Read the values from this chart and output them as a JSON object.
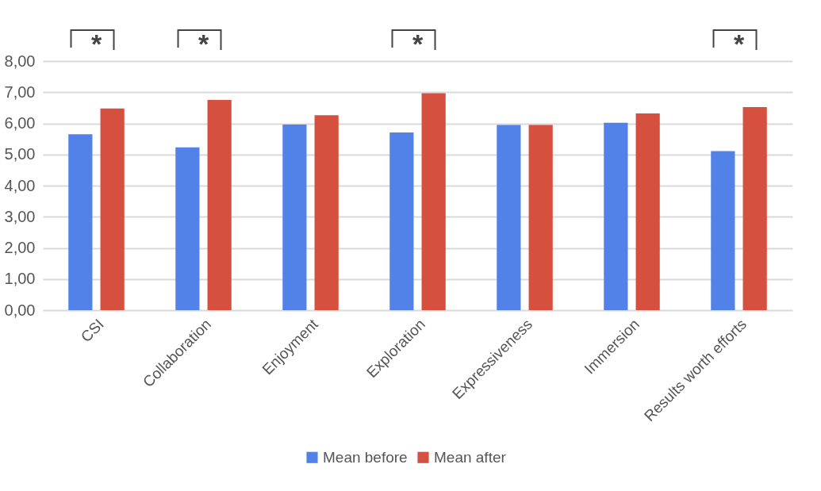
{
  "chart_data": {
    "type": "bar",
    "categories": [
      "CSI",
      "Collaboration",
      "Enjoyment",
      "Exploration",
      "Expressiveness",
      "Immersion",
      "Results worth efforts"
    ],
    "series": [
      {
        "name": "Mean before",
        "color": "#5282e8",
        "values": [
          5.65,
          5.23,
          5.96,
          5.71,
          5.95,
          6.02,
          5.11
        ]
      },
      {
        "name": "Mean after",
        "color": "#d65040",
        "values": [
          6.48,
          6.75,
          6.26,
          6.97,
          5.95,
          6.32,
          6.52
        ]
      }
    ],
    "ylim": [
      0,
      8
    ],
    "yticks": [
      {
        "value": 0,
        "label": "0,00"
      },
      {
        "value": 1,
        "label": "1,00"
      },
      {
        "value": 2,
        "label": "2,00"
      },
      {
        "value": 3,
        "label": "3,00"
      },
      {
        "value": 4,
        "label": "4,00"
      },
      {
        "value": 5,
        "label": "5,00"
      },
      {
        "value": 6,
        "label": "6,00"
      },
      {
        "value": 7,
        "label": "7,00"
      },
      {
        "value": 8,
        "label": "8,00"
      }
    ],
    "grid": "y",
    "legend": "bottom",
    "annotations": [
      "*",
      "*",
      "*",
      "*"
    ]
  }
}
